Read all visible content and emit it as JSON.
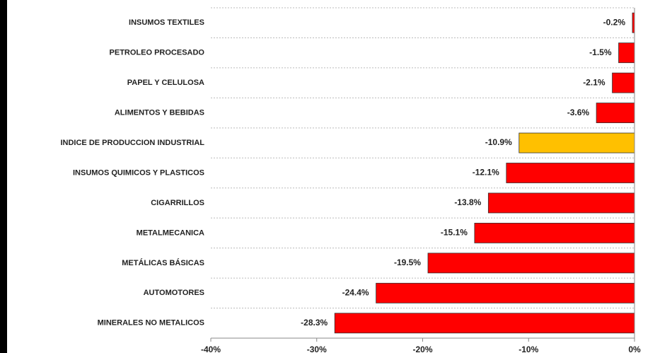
{
  "chart_data": {
    "type": "barh",
    "categories": [
      "INSUMOS TEXTILES",
      "PETROLEO PROCESADO",
      "PAPEL Y CELULOSA",
      "ALIMENTOS Y BEBIDAS",
      "INDICE DE PRODUCCION INDUSTRIAL",
      "INSUMOS QUIMICOS Y PLASTICOS",
      "CIGARRILLOS",
      "METALMECANICA",
      "METÁLICAS BÁSICAS",
      "AUTOMOTORES",
      "MINERALES NO METALICOS"
    ],
    "values": [
      -0.2,
      -1.5,
      -2.1,
      -3.6,
      -10.9,
      -12.1,
      -13.8,
      -15.1,
      -19.5,
      -24.4,
      -28.3
    ],
    "value_labels": [
      "-0.2%",
      "-1.5%",
      "-2.1%",
      "-3.6%",
      "-10.9%",
      "-12.1%",
      "-13.8%",
      "-15.1%",
      "-19.5%",
      "-24.4%",
      "-28.3%"
    ],
    "colors": [
      "#ff0000",
      "#ff0000",
      "#ff0000",
      "#ff0000",
      "#ffc000",
      "#ff0000",
      "#ff0000",
      "#ff0000",
      "#ff0000",
      "#ff0000",
      "#ff0000"
    ],
    "xlim": [
      -40,
      0
    ],
    "xticks": [
      {
        "value": -40,
        "label": "-40%"
      },
      {
        "value": -30,
        "label": "-30%"
      },
      {
        "value": -20,
        "label": "-20%"
      },
      {
        "value": -10,
        "label": "-10%"
      },
      {
        "value": 0,
        "label": "0%"
      }
    ],
    "grid": true
  }
}
